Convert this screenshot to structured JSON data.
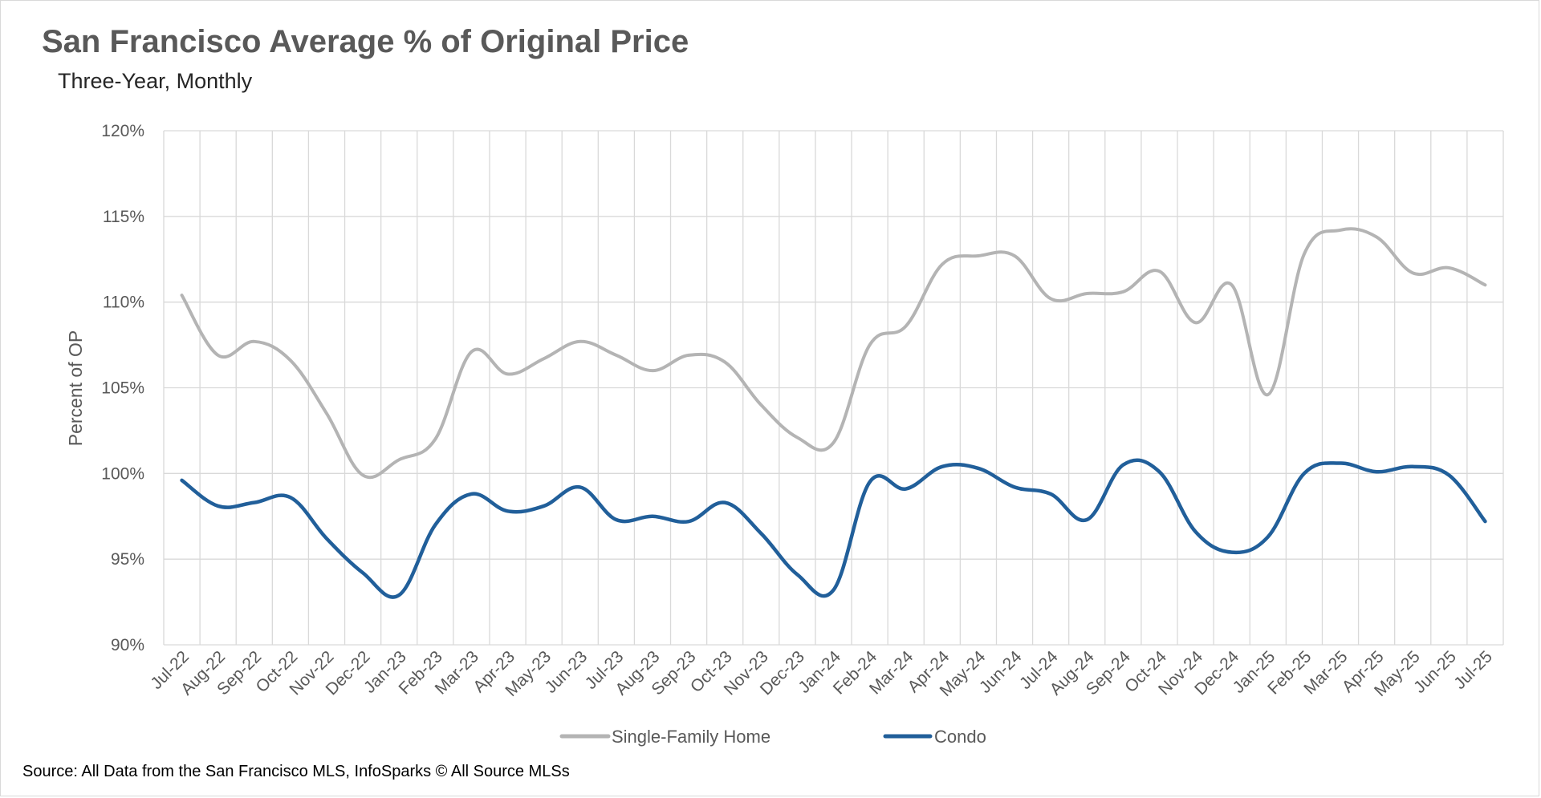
{
  "header": {
    "title": "San Francisco Average % of Original Price",
    "subtitle": "Three-Year, Monthly"
  },
  "footer": {
    "source": "Source: All Data from the San Francisco MLS, InfoSparks © All Source MLSs"
  },
  "chart_data": {
    "type": "line",
    "title": "San Francisco Average % of Original Price",
    "subtitle": "Three-Year, Monthly",
    "xlabel": "",
    "ylabel": "Percent of OP",
    "ylim": [
      90,
      120
    ],
    "yticks": [
      "90%",
      "95%",
      "100%",
      "105%",
      "110%",
      "115%",
      "120%"
    ],
    "ytick_values": [
      90,
      95,
      100,
      105,
      110,
      115,
      120
    ],
    "grid": true,
    "legend": "bottom",
    "categories": [
      "Jul-22",
      "Aug-22",
      "Sep-22",
      "Oct-22",
      "Nov-22",
      "Dec-22",
      "Jan-23",
      "Feb-23",
      "Mar-23",
      "Apr-23",
      "May-23",
      "Jun-23",
      "Jul-23",
      "Aug-23",
      "Sep-23",
      "Oct-23",
      "Nov-23",
      "Dec-23",
      "Jan-24",
      "Feb-24",
      "Mar-24",
      "Apr-24",
      "May-24",
      "Jun-24",
      "Jul-24",
      "Aug-24",
      "Sep-24",
      "Oct-24",
      "Nov-24",
      "Dec-24",
      "Jan-25",
      "Feb-25",
      "Mar-25",
      "Apr-25",
      "May-25",
      "Jun-25",
      "Jul-25"
    ],
    "series": [
      {
        "name": "Single-Family Home",
        "color": "#b4b4b4",
        "values": [
          110.4,
          106.9,
          107.7,
          106.6,
          103.5,
          99.9,
          100.8,
          102.0,
          107.1,
          105.8,
          106.7,
          107.7,
          106.9,
          106.0,
          106.9,
          106.5,
          104.0,
          102.1,
          101.8,
          107.5,
          108.6,
          112.2,
          112.7,
          112.7,
          110.2,
          110.5,
          110.6,
          111.8,
          108.8,
          111.0,
          104.6,
          112.8,
          114.2,
          113.8,
          111.7,
          112.0,
          111.0
        ]
      },
      {
        "name": "Condo",
        "color": "#215f9a",
        "values": [
          99.6,
          98.1,
          98.3,
          98.6,
          96.2,
          94.2,
          92.9,
          97.0,
          98.8,
          97.8,
          98.1,
          99.2,
          97.3,
          97.5,
          97.2,
          98.3,
          96.5,
          94.1,
          93.2,
          99.5,
          99.1,
          100.4,
          100.3,
          99.2,
          98.8,
          97.3,
          100.5,
          100.1,
          96.6,
          95.4,
          96.3,
          100.0,
          100.6,
          100.1,
          100.4,
          99.9,
          97.2
        ]
      }
    ]
  }
}
